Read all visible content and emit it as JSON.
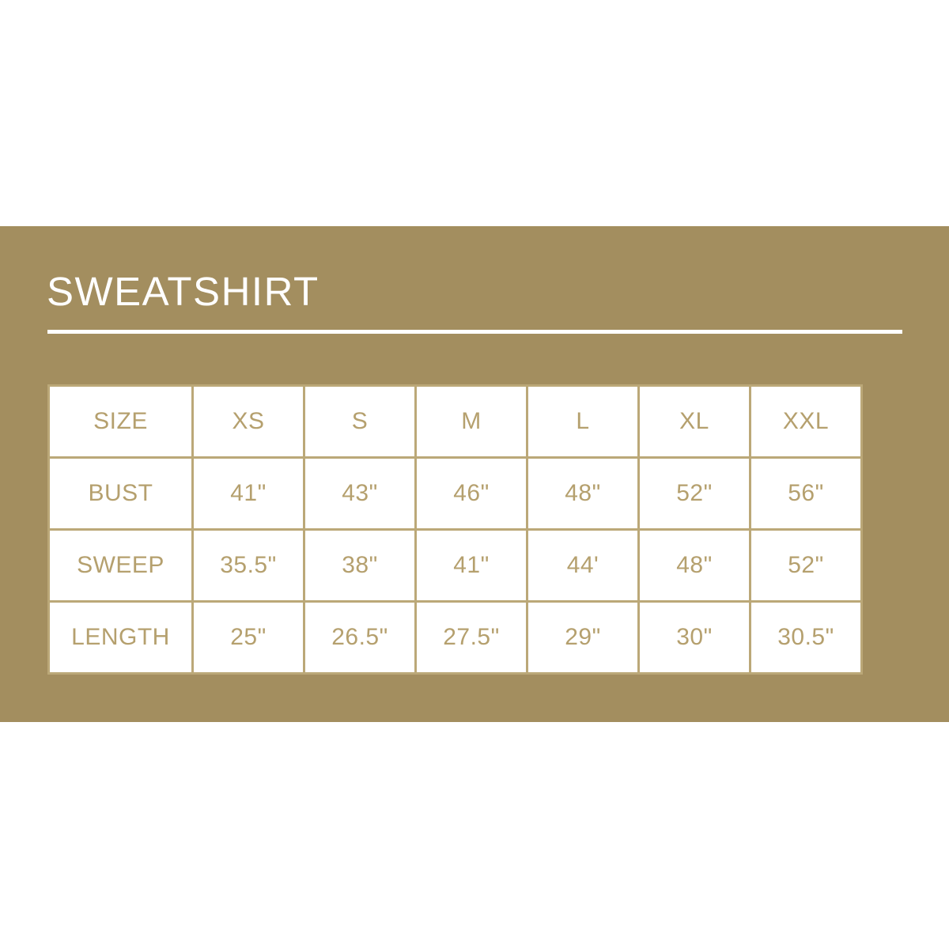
{
  "title": "SWEATSHIRT",
  "colors": {
    "band": "#a38e5f",
    "text": "#b5a06e",
    "border": "#bba878",
    "title": "#ffffff"
  },
  "table": {
    "header": {
      "label": "SIZE",
      "sizes": [
        "XS",
        "S",
        "M",
        "L",
        "XL",
        "XXL"
      ]
    },
    "rows": [
      {
        "label": "BUST",
        "values": [
          "41\"",
          "43\"",
          "46\"",
          "48\"",
          "52\"",
          "56\""
        ]
      },
      {
        "label": "SWEEP",
        "values": [
          "35.5\"",
          "38\"",
          "41\"",
          "44'",
          "48\"",
          "52\""
        ]
      },
      {
        "label": "LENGTH",
        "values": [
          "25\"",
          "26.5\"",
          "27.5\"",
          "29\"",
          "30\"",
          "30.5\""
        ]
      }
    ]
  }
}
